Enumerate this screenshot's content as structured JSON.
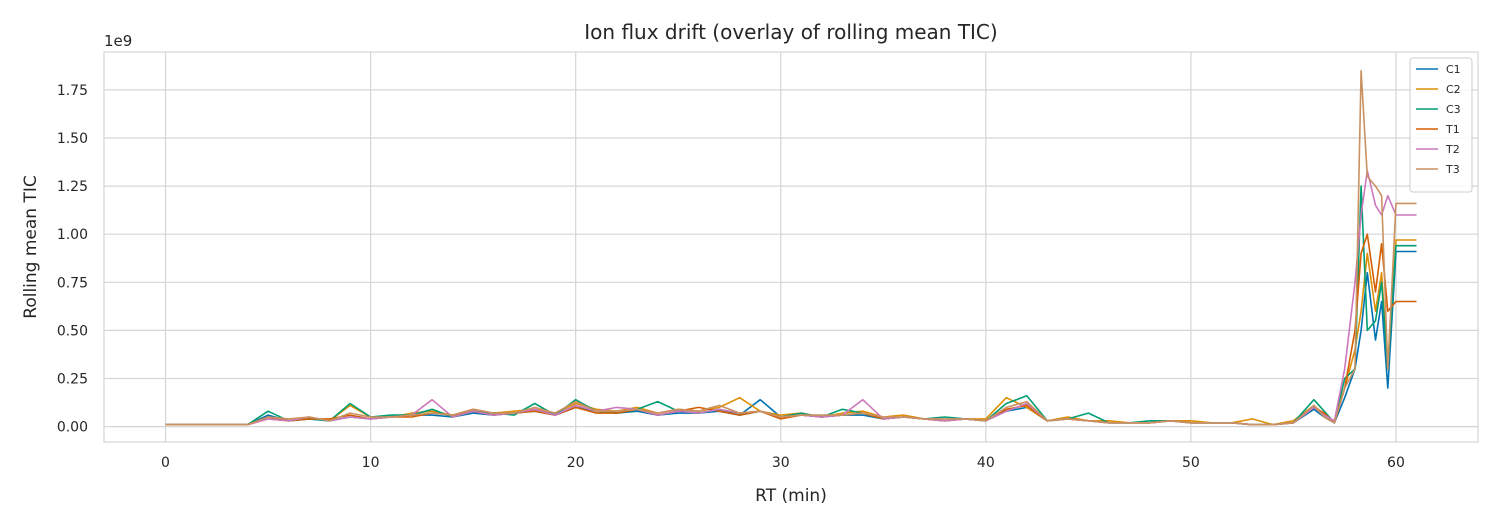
{
  "chart_data": {
    "type": "line",
    "title": "Ion flux drift (overlay of rolling mean TIC)",
    "x_label": "RT (min)",
    "y_label": "Rolling mean TIC",
    "y_offset_label": "1e9",
    "x": [
      0,
      1,
      2,
      3,
      4,
      5,
      6,
      7,
      8,
      9,
      10,
      11,
      12,
      13,
      14,
      15,
      16,
      17,
      18,
      19,
      20,
      21,
      22,
      23,
      24,
      25,
      26,
      27,
      28,
      29,
      30,
      31,
      32,
      33,
      34,
      35,
      36,
      37,
      38,
      39,
      40,
      41,
      42,
      43,
      44,
      45,
      46,
      47,
      48,
      49,
      50,
      51,
      52,
      53,
      54,
      55,
      56,
      56.5,
      57,
      57.5,
      58,
      58.3,
      58.6,
      59,
      59.3,
      59.6,
      60,
      61
    ],
    "series": [
      {
        "name": "C1",
        "color": "#0173b2",
        "values": [
          0.01,
          0.01,
          0.01,
          0.01,
          0.01,
          0.06,
          0.03,
          0.04,
          0.03,
          0.05,
          0.04,
          0.05,
          0.06,
          0.06,
          0.05,
          0.07,
          0.06,
          0.07,
          0.08,
          0.06,
          0.1,
          0.08,
          0.07,
          0.08,
          0.06,
          0.07,
          0.07,
          0.08,
          0.06,
          0.14,
          0.05,
          0.06,
          0.05,
          0.06,
          0.06,
          0.04,
          0.05,
          0.04,
          0.03,
          0.04,
          0.03,
          0.08,
          0.1,
          0.03,
          0.04,
          0.03,
          0.02,
          0.02,
          0.02,
          0.03,
          0.02,
          0.02,
          0.02,
          0.01,
          0.01,
          0.02,
          0.09,
          0.05,
          0.02,
          0.15,
          0.3,
          0.5,
          0.8,
          0.45,
          0.65,
          0.2,
          0.91,
          0.91
        ]
      },
      {
        "name": "C2",
        "color": "#de8f05",
        "values": [
          0.01,
          0.01,
          0.01,
          0.01,
          0.01,
          0.04,
          0.03,
          0.05,
          0.03,
          0.11,
          0.05,
          0.05,
          0.07,
          0.08,
          0.06,
          0.09,
          0.07,
          0.08,
          0.09,
          0.07,
          0.12,
          0.09,
          0.08,
          0.1,
          0.07,
          0.09,
          0.08,
          0.1,
          0.15,
          0.08,
          0.06,
          0.07,
          0.05,
          0.07,
          0.08,
          0.05,
          0.06,
          0.04,
          0.03,
          0.04,
          0.04,
          0.15,
          0.1,
          0.03,
          0.05,
          0.03,
          0.03,
          0.02,
          0.02,
          0.03,
          0.03,
          0.02,
          0.02,
          0.04,
          0.01,
          0.03,
          0.11,
          0.06,
          0.03,
          0.2,
          0.4,
          0.6,
          0.9,
          0.6,
          0.8,
          0.3,
          0.97,
          0.97
        ]
      },
      {
        "name": "C3",
        "color": "#029e73",
        "values": [
          0.01,
          0.01,
          0.01,
          0.01,
          0.01,
          0.08,
          0.03,
          0.04,
          0.03,
          0.12,
          0.05,
          0.06,
          0.06,
          0.09,
          0.05,
          0.08,
          0.07,
          0.06,
          0.12,
          0.06,
          0.14,
          0.08,
          0.07,
          0.09,
          0.13,
          0.08,
          0.07,
          0.09,
          0.06,
          0.08,
          0.05,
          0.07,
          0.05,
          0.09,
          0.07,
          0.04,
          0.05,
          0.04,
          0.05,
          0.04,
          0.03,
          0.12,
          0.16,
          0.03,
          0.04,
          0.07,
          0.02,
          0.02,
          0.03,
          0.03,
          0.02,
          0.02,
          0.02,
          0.01,
          0.01,
          0.02,
          0.14,
          0.08,
          0.02,
          0.25,
          0.3,
          1.25,
          0.5,
          0.55,
          0.75,
          0.3,
          0.94,
          0.94
        ]
      },
      {
        "name": "T1",
        "color": "#d55e00",
        "values": [
          0.01,
          0.01,
          0.01,
          0.01,
          0.01,
          0.05,
          0.03,
          0.04,
          0.04,
          0.06,
          0.04,
          0.05,
          0.05,
          0.07,
          0.06,
          0.08,
          0.06,
          0.07,
          0.08,
          0.06,
          0.1,
          0.07,
          0.07,
          0.09,
          0.06,
          0.08,
          0.1,
          0.08,
          0.06,
          0.08,
          0.04,
          0.06,
          0.05,
          0.06,
          0.07,
          0.04,
          0.05,
          0.04,
          0.03,
          0.04,
          0.03,
          0.09,
          0.11,
          0.03,
          0.04,
          0.03,
          0.02,
          0.02,
          0.02,
          0.03,
          0.02,
          0.02,
          0.02,
          0.01,
          0.01,
          0.02,
          0.1,
          0.07,
          0.02,
          0.2,
          0.5,
          0.9,
          1.0,
          0.7,
          0.95,
          0.6,
          0.65,
          0.65
        ]
      },
      {
        "name": "T2",
        "color": "#cc78bc",
        "values": [
          0.01,
          0.01,
          0.01,
          0.01,
          0.01,
          0.04,
          0.03,
          0.05,
          0.03,
          0.05,
          0.04,
          0.05,
          0.06,
          0.14,
          0.05,
          0.08,
          0.06,
          0.07,
          0.09,
          0.06,
          0.11,
          0.08,
          0.1,
          0.09,
          0.06,
          0.08,
          0.07,
          0.09,
          0.07,
          0.08,
          0.05,
          0.06,
          0.05,
          0.06,
          0.14,
          0.04,
          0.05,
          0.04,
          0.03,
          0.04,
          0.03,
          0.08,
          0.12,
          0.03,
          0.04,
          0.03,
          0.02,
          0.02,
          0.02,
          0.03,
          0.02,
          0.02,
          0.02,
          0.01,
          0.01,
          0.02,
          0.1,
          0.06,
          0.03,
          0.3,
          0.75,
          1.1,
          1.33,
          1.15,
          1.1,
          1.2,
          1.1,
          1.1
        ]
      },
      {
        "name": "T3",
        "color": "#ca9161",
        "values": [
          0.01,
          0.01,
          0.01,
          0.01,
          0.01,
          0.05,
          0.04,
          0.05,
          0.03,
          0.07,
          0.05,
          0.05,
          0.06,
          0.07,
          0.06,
          0.09,
          0.07,
          0.07,
          0.1,
          0.07,
          0.13,
          0.08,
          0.08,
          0.09,
          0.07,
          0.09,
          0.08,
          0.11,
          0.07,
          0.08,
          0.05,
          0.06,
          0.06,
          0.06,
          0.07,
          0.05,
          0.05,
          0.04,
          0.04,
          0.04,
          0.03,
          0.1,
          0.13,
          0.03,
          0.04,
          0.03,
          0.02,
          0.02,
          0.02,
          0.03,
          0.02,
          0.02,
          0.02,
          0.01,
          0.01,
          0.02,
          0.11,
          0.05,
          0.02,
          0.2,
          0.3,
          1.85,
          1.3,
          1.25,
          1.2,
          0.3,
          1.16,
          1.16
        ]
      }
    ],
    "xlim": [
      -3,
      64
    ],
    "ylim": [
      -0.08,
      1.947
    ],
    "xticks": [
      0,
      10,
      20,
      30,
      40,
      50,
      60
    ],
    "yticks": [
      {
        "value": 0,
        "label": "0.00"
      },
      0.25,
      {
        "value": 0.5,
        "label": "0.50"
      },
      0.75,
      {
        "value": 1,
        "label": "1.00"
      },
      1.25,
      {
        "value": 1.5,
        "label": "1.50"
      },
      1.75
    ],
    "grid": true,
    "legend": "upper right"
  }
}
